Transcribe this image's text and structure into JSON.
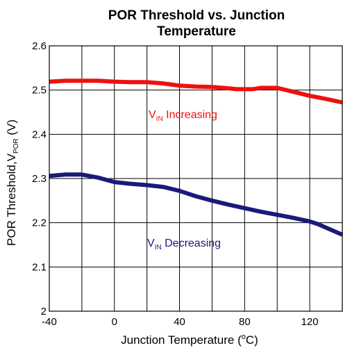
{
  "chart_data": {
    "type": "line",
    "title_line1": "POR Threshold vs. Junction",
    "title_line2": "Temperature",
    "xlabel_prefix": "Junction Temperature (",
    "xlabel_sup": "o",
    "xlabel_suffix": "C)",
    "ylabel_prefix": "POR Threshold,V",
    "ylabel_sub": "POR",
    "ylabel_suffix": " (V)",
    "xlim": [
      -40,
      140
    ],
    "ylim": [
      2.0,
      2.6
    ],
    "x_ticks": [
      -40,
      0,
      40,
      80,
      120
    ],
    "x_tick_labels": [
      "-40",
      "0",
      "40",
      "80",
      "120"
    ],
    "y_ticks": [
      2.0,
      2.1,
      2.2,
      2.3,
      2.4,
      2.5,
      2.6
    ],
    "y_tick_labels": [
      "2",
      "2.1",
      "2.2",
      "2.3",
      "2.4",
      "2.5",
      "2.6"
    ],
    "grid": true,
    "series": [
      {
        "color": "#ee1111",
        "x": [
          -40,
          -30,
          -20,
          -10,
          0,
          10,
          20,
          30,
          40,
          50,
          60,
          70,
          75,
          85,
          90,
          100,
          110,
          120,
          130,
          140
        ],
        "y": [
          2.519,
          2.521,
          2.521,
          2.521,
          2.519,
          2.518,
          2.518,
          2.515,
          2.51,
          2.508,
          2.507,
          2.504,
          2.502,
          2.502,
          2.505,
          2.505,
          2.496,
          2.487,
          2.48,
          2.472
        ]
      },
      {
        "color": "#1a1a7a",
        "x": [
          -40,
          -30,
          -20,
          -10,
          0,
          10,
          20,
          30,
          40,
          50,
          60,
          70,
          80,
          90,
          100,
          110,
          120,
          125,
          130,
          140
        ],
        "y": [
          2.306,
          2.309,
          2.309,
          2.302,
          2.292,
          2.288,
          2.285,
          2.281,
          2.272,
          2.26,
          2.25,
          2.241,
          2.233,
          2.225,
          2.218,
          2.211,
          2.203,
          2.197,
          2.189,
          2.173
        ]
      }
    ],
    "annotations": [
      {
        "prefix": "V",
        "sub": "IN",
        "text": " Increasing",
        "color": "#ee1111"
      },
      {
        "prefix": "V",
        "sub": "IN",
        "text": " Decreasing",
        "color": "#1a1a7a"
      }
    ]
  }
}
